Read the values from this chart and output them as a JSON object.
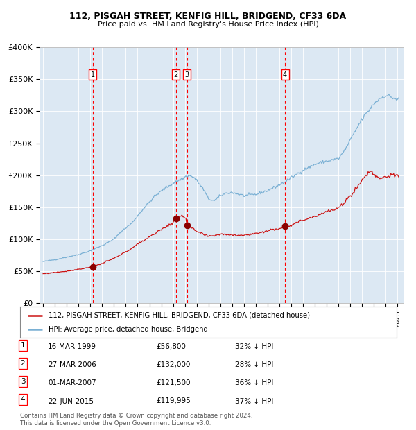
{
  "title1": "112, PISGAH STREET, KENFIG HILL, BRIDGEND, CF33 6DA",
  "title2": "Price paid vs. HM Land Registry's House Price Index (HPI)",
  "ylim": [
    0,
    400000
  ],
  "yticks": [
    0,
    50000,
    100000,
    150000,
    200000,
    250000,
    300000,
    350000,
    400000
  ],
  "ytick_labels": [
    "£0",
    "£50K",
    "£100K",
    "£150K",
    "£200K",
    "£250K",
    "£300K",
    "£350K",
    "£400K"
  ],
  "xlim_start": 1994.7,
  "xlim_end": 2025.5,
  "bg_color": "#dce8f3",
  "hpi_color": "#7ab0d4",
  "house_color": "#cc1111",
  "marker_color": "#8b0000",
  "sale_dates": [
    1999.21,
    2006.23,
    2007.17,
    2015.47
  ],
  "sale_prices": [
    56800,
    132000,
    121500,
    119995
  ],
  "sale_labels": [
    "1",
    "2",
    "3",
    "4"
  ],
  "legend_house": "112, PISGAH STREET, KENFIG HILL, BRIDGEND, CF33 6DA (detached house)",
  "legend_hpi": "HPI: Average price, detached house, Bridgend",
  "table_data": [
    [
      "1",
      "16-MAR-1999",
      "£56,800",
      "32% ↓ HPI"
    ],
    [
      "2",
      "27-MAR-2006",
      "£132,000",
      "28% ↓ HPI"
    ],
    [
      "3",
      "01-MAR-2007",
      "£121,500",
      "36% ↓ HPI"
    ],
    [
      "4",
      "22-JUN-2015",
      "£119,995",
      "37% ↓ HPI"
    ]
  ],
  "footnote1": "Contains HM Land Registry data © Crown copyright and database right 2024.",
  "footnote2": "This data is licensed under the Open Government Licence v3.0."
}
